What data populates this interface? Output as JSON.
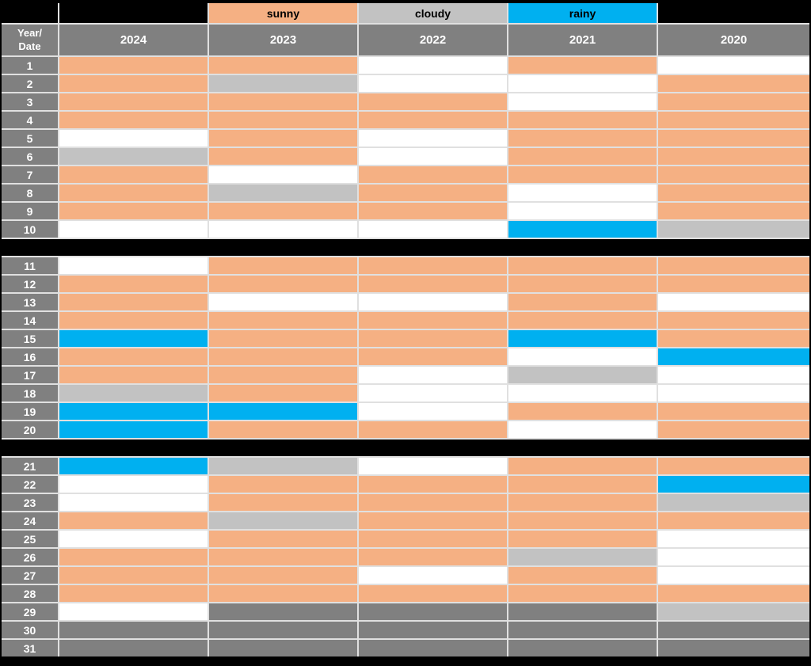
{
  "colors": {
    "background": "#000000",
    "gridline": "#E0E0E0",
    "header": "#808080",
    "header_text": "#FFFFFF",
    "legend_text": "#000000",
    "sunny": "#F5B083",
    "cloudy": "#C2C2C2",
    "rainy": "#00B0F0",
    "empty": "#FFFFFF",
    "na": "#808080"
  },
  "header": {
    "corner": "Year/\nDate"
  },
  "chart_data": {
    "type": "heatmap",
    "title": "",
    "columns": [
      "2024",
      "2023",
      "2022",
      "2021",
      "2020"
    ],
    "rows": [
      "1",
      "2",
      "3",
      "4",
      "5",
      "6",
      "7",
      "8",
      "9",
      "10",
      "11",
      "12",
      "13",
      "14",
      "15",
      "16",
      "17",
      "18",
      "19",
      "20",
      "21",
      "22",
      "23",
      "24",
      "25",
      "26",
      "27",
      "28",
      "29",
      "30",
      "31"
    ],
    "legend": [
      {
        "label": "sunny",
        "state": "sunny",
        "color": "#F5B083"
      },
      {
        "label": "cloudy",
        "state": "cloudy",
        "color": "#C2C2C2"
      },
      {
        "label": "rainy",
        "state": "rainy",
        "color": "#00B0F0"
      }
    ],
    "legend_placement_by_column": [
      "",
      "sunny",
      "cloudy",
      "rainy",
      ""
    ],
    "states_meaning": {
      "empty": "no data (white cell)",
      "na": "date not present (dark gray cell)"
    },
    "row_group_breaks_after": [
      "10",
      "20"
    ],
    "values": [
      [
        "sunny",
        "sunny",
        "empty",
        "sunny",
        "empty"
      ],
      [
        "sunny",
        "cloudy",
        "empty",
        "empty",
        "sunny"
      ],
      [
        "sunny",
        "sunny",
        "sunny",
        "empty",
        "sunny"
      ],
      [
        "sunny",
        "sunny",
        "sunny",
        "sunny",
        "sunny"
      ],
      [
        "empty",
        "sunny",
        "empty",
        "sunny",
        "sunny"
      ],
      [
        "cloudy",
        "sunny",
        "empty",
        "sunny",
        "sunny"
      ],
      [
        "sunny",
        "empty",
        "sunny",
        "sunny",
        "sunny"
      ],
      [
        "sunny",
        "cloudy",
        "sunny",
        "empty",
        "sunny"
      ],
      [
        "sunny",
        "sunny",
        "sunny",
        "empty",
        "sunny"
      ],
      [
        "empty",
        "empty",
        "empty",
        "rainy",
        "cloudy"
      ],
      [
        "empty",
        "sunny",
        "sunny",
        "sunny",
        "sunny"
      ],
      [
        "sunny",
        "sunny",
        "sunny",
        "sunny",
        "sunny"
      ],
      [
        "sunny",
        "empty",
        "empty",
        "sunny",
        "empty"
      ],
      [
        "sunny",
        "sunny",
        "sunny",
        "sunny",
        "sunny"
      ],
      [
        "rainy",
        "sunny",
        "sunny",
        "rainy",
        "sunny"
      ],
      [
        "sunny",
        "sunny",
        "sunny",
        "empty",
        "rainy"
      ],
      [
        "sunny",
        "sunny",
        "empty",
        "cloudy",
        "empty"
      ],
      [
        "cloudy",
        "sunny",
        "empty",
        "empty",
        "empty"
      ],
      [
        "rainy",
        "rainy",
        "empty",
        "sunny",
        "sunny"
      ],
      [
        "rainy",
        "sunny",
        "sunny",
        "empty",
        "sunny"
      ],
      [
        "rainy",
        "cloudy",
        "empty",
        "sunny",
        "sunny"
      ],
      [
        "empty",
        "sunny",
        "sunny",
        "sunny",
        "rainy"
      ],
      [
        "empty",
        "sunny",
        "sunny",
        "sunny",
        "cloudy"
      ],
      [
        "sunny",
        "cloudy",
        "sunny",
        "sunny",
        "sunny"
      ],
      [
        "empty",
        "sunny",
        "sunny",
        "sunny",
        "empty"
      ],
      [
        "sunny",
        "sunny",
        "sunny",
        "cloudy",
        "empty"
      ],
      [
        "sunny",
        "sunny",
        "empty",
        "sunny",
        "empty"
      ],
      [
        "sunny",
        "sunny",
        "sunny",
        "sunny",
        "sunny"
      ],
      [
        "empty",
        "na",
        "na",
        "na",
        "cloudy"
      ],
      [
        "na",
        "na",
        "na",
        "na",
        "na"
      ],
      [
        "na",
        "na",
        "na",
        "na",
        "na"
      ]
    ]
  }
}
